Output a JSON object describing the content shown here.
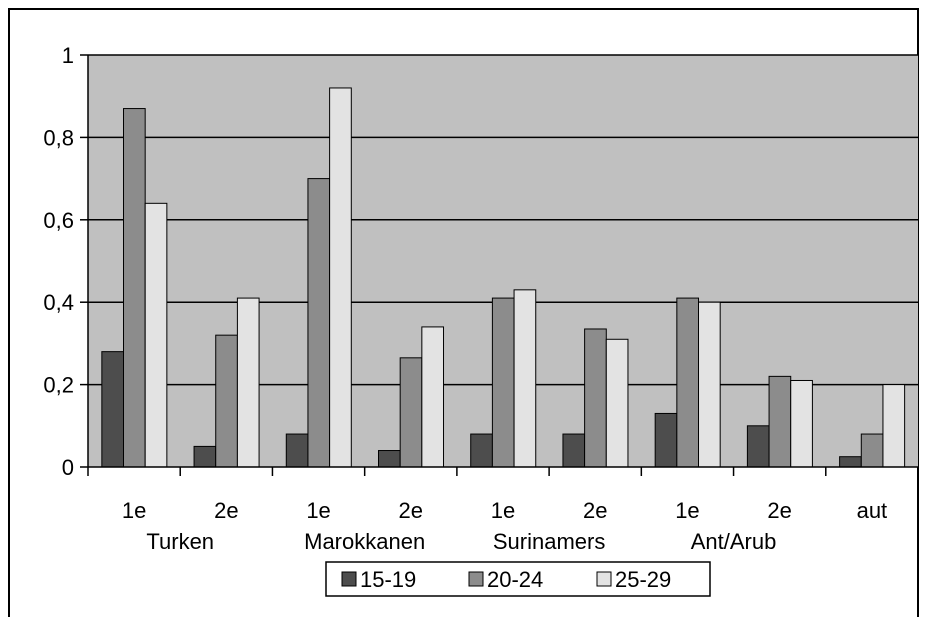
{
  "chart_data": {
    "type": "bar",
    "title": "",
    "xlabel": "",
    "ylabel": "",
    "ylim": [
      0,
      1
    ],
    "yticks": [
      "0",
      "0,2",
      "0,4",
      "0,6",
      "0,8",
      "1"
    ],
    "ytick_values": [
      0,
      0.2,
      0.4,
      0.6,
      0.8,
      1
    ],
    "categories": [
      "1e",
      "2e",
      "1e",
      "2e",
      "1e",
      "2e",
      "1e",
      "2e",
      "aut"
    ],
    "groups": [
      {
        "label": "Turken",
        "span": [
          0,
          1
        ]
      },
      {
        "label": "Marokkanen",
        "span": [
          2,
          3
        ]
      },
      {
        "label": "Surinamers",
        "span": [
          4,
          5
        ]
      },
      {
        "label": "Ant/Arub",
        "span": [
          6,
          7
        ]
      }
    ],
    "series": [
      {
        "name": "15-19",
        "color": "#4d4d4d",
        "values": [
          0.28,
          0.05,
          0.08,
          0.04,
          0.08,
          0.08,
          0.13,
          0.1,
          0.025
        ]
      },
      {
        "name": "20-24",
        "color": "#8c8c8c",
        "values": [
          0.87,
          0.32,
          0.7,
          0.265,
          0.41,
          0.335,
          0.41,
          0.22,
          0.08
        ]
      },
      {
        "name": "25-29",
        "color": "#e3e3e3",
        "values": [
          0.64,
          0.41,
          0.92,
          0.34,
          0.43,
          0.31,
          0.4,
          0.21,
          0.2
        ]
      }
    ],
    "plot_background": "#c0c0c0",
    "grid": true,
    "legend": "bottom-center"
  }
}
